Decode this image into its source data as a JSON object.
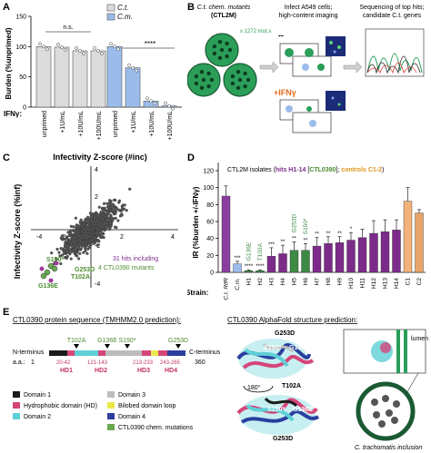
{
  "panels": {
    "A": {
      "letter": "A",
      "legend": [
        "C.t.",
        "C.m."
      ],
      "y_label": "Burden (%unprimed)",
      "ticks_y": [
        "0",
        "50",
        "100",
        "150"
      ],
      "ifn_label": "IFNγ:",
      "x_labels": [
        "unprimed",
        "+1U/mL",
        "+10U/mL",
        "+100U/mL",
        "unprimed",
        "+1U/mL",
        "+10U/mL",
        "+100U/mL"
      ],
      "ns_label": "n.s.",
      "sig_label": "****"
    },
    "B": {
      "letter": "B",
      "col1_title": "C.t. chem. mutants",
      "col1_sub": "(CTL2M)",
      "col1_count": "x 1272 mut.s",
      "col2_title": "Infect A549 cells;",
      "col2_sub": "high-content imaging",
      "col3_title": "Sequencing of top hits;",
      "col3_sub": "candidate C.t. genes",
      "minus": "--",
      "plus": "+IFNγ"
    },
    "C": {
      "letter": "C",
      "x_title": "Infectivity Z-score (#inc)",
      "y_title": "Infectivity Z-score (%inf)",
      "ticks": [
        "-4",
        "-2",
        "2",
        "4"
      ],
      "labels": [
        "S150*",
        "T102A",
        "G253D",
        "G136E"
      ],
      "note1": "31 hits including",
      "note2": "4 CTL0390 mutants"
    },
    "D": {
      "letter": "D",
      "title_a": "CTL2M isolates (",
      "title_b": "hits H1-14",
      "title_c": " [",
      "title_d": "CTL0390",
      "title_e": "]; ",
      "title_f": "controls C1-2",
      "title_g": ")",
      "y_label": "IR (%burden +/-IFNγ)",
      "ticks_y": [
        "0",
        "20",
        "40",
        "60",
        "80",
        "100",
        "120"
      ],
      "strain_label": "Strain:",
      "mutation_labels": [
        "G136E",
        "T102A",
        "G253D",
        "S150*"
      ]
    },
    "E": {
      "letter": "E",
      "seq_title": "CTL0390 protein sequence (TMHMM2.0 prediction):",
      "n_term": "N-terminus",
      "c_term": "C-terminus",
      "aa_label": "a.a.:",
      "aa_start": "1",
      "aa_end": "360",
      "mutations": [
        "T102A",
        "G136E",
        "S150*",
        "G253D"
      ],
      "hd_ranges": [
        "20-42",
        "121-143",
        "213-233",
        "243-265"
      ],
      "hd_names": [
        "HD1",
        "HD2",
        "HD3",
        "HD4"
      ],
      "legend": [
        "Domain 1",
        "Hydrophobic domain (HD)",
        "Domain 2",
        "Domain 3",
        "Bilobed domain loop",
        "Domain 4",
        "CTL0390 chem. mutations"
      ],
      "af_title": "CTL0390 AlphaFold structure prediction:",
      "af_labels": [
        "G253D",
        "S150*",
        "G136E",
        "T102A",
        "S150*",
        "G136E",
        "G253D"
      ],
      "rotation": "180°",
      "lumen": "lumen",
      "inclusion": "C. trachomatis inclusion"
    }
  },
  "chart_data": [
    {
      "type": "bar",
      "panel": "A",
      "categories": [
        "unprimed",
        "+1U/mL",
        "+10U/mL",
        "+100U/mL"
      ],
      "series": [
        {
          "name": "C.t.",
          "values": [
            100,
            99,
            93,
            93
          ],
          "color": "#dcdcdc"
        },
        {
          "name": "C.m.",
          "values": [
            100,
            65,
            10,
            2
          ],
          "color": "#9bbcea"
        }
      ],
      "ylabel": "Burden (%unprimed)",
      "ylim": [
        0,
        150
      ]
    },
    {
      "type": "bar",
      "panel": "D",
      "categories": [
        "C.t. RifR",
        "C.m.",
        "H1",
        "H2",
        "H3",
        "H4",
        "H5",
        "H6",
        "H7",
        "H8",
        "H9",
        "H10",
        "H11",
        "H12",
        "H13",
        "H14",
        "C1",
        "C2"
      ],
      "values": [
        90,
        10,
        2,
        2,
        19,
        22,
        26,
        26,
        31,
        34,
        35,
        38,
        41,
        46,
        48,
        50,
        84,
        70
      ],
      "errors": [
        12,
        3,
        1,
        1,
        10,
        10,
        10,
        8,
        10,
        8,
        7,
        9,
        10,
        15,
        14,
        12,
        16,
        4
      ],
      "stars": [
        "",
        "***",
        "****",
        "****",
        "***",
        "**",
        "**",
        "**",
        "**",
        "**",
        "**",
        "*",
        "",
        "",
        "",
        "",
        "",
        ""
      ],
      "ylabel": "IR (%burden +/-IFNγ)",
      "ylim": [
        0,
        120
      ]
    }
  ]
}
